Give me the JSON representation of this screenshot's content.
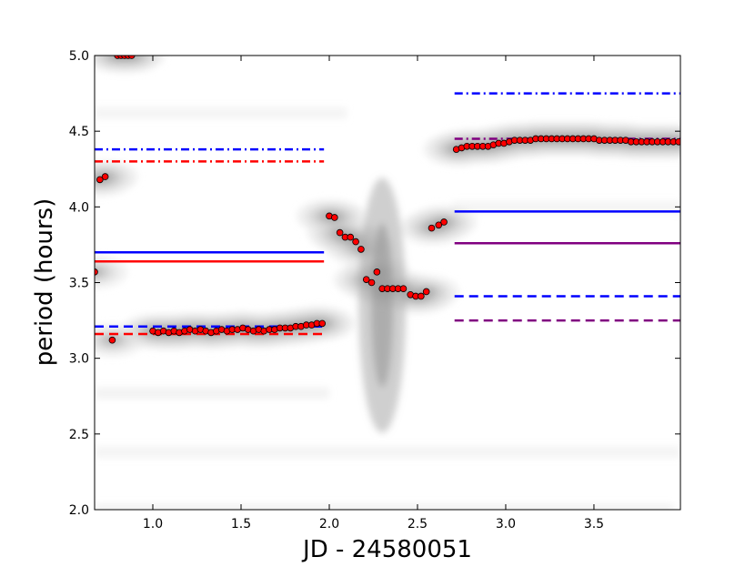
{
  "chart_data": {
    "type": "scatter",
    "title": "",
    "xlabel": "JD - 24580051",
    "ylabel": "period (hours)",
    "xlim": [
      0.67,
      3.99
    ],
    "ylim": [
      2.0,
      5.0
    ],
    "x_ticks": [
      1.0,
      1.5,
      2.0,
      2.5,
      3.0,
      3.5
    ],
    "x_tick_labels": [
      "1.0",
      "1.5",
      "2.0",
      "2.5",
      "3.0",
      "3.5"
    ],
    "y_ticks": [
      2.0,
      2.5,
      3.0,
      3.5,
      4.0,
      4.5,
      5.0
    ],
    "y_tick_labels": [
      "2.0",
      "2.5",
      "3.0",
      "3.5",
      "4.0",
      "4.5",
      "5.0"
    ],
    "grid": false,
    "legend": "none",
    "background": "grayscale filled contours (periodogram power) concentrated around the measured period track",
    "points_color": "#ff0000",
    "points": [
      [
        0.67,
        3.57
      ],
      [
        0.7,
        4.18
      ],
      [
        0.73,
        4.2
      ],
      [
        0.77,
        3.12
      ],
      [
        0.8,
        5.0
      ],
      [
        0.82,
        5.0
      ],
      [
        0.84,
        5.0
      ],
      [
        0.86,
        5.0
      ],
      [
        0.88,
        5.0
      ],
      [
        1.0,
        3.18
      ],
      [
        1.03,
        3.17
      ],
      [
        1.06,
        3.18
      ],
      [
        1.09,
        3.17
      ],
      [
        1.12,
        3.18
      ],
      [
        1.15,
        3.17
      ],
      [
        1.18,
        3.18
      ],
      [
        1.21,
        3.19
      ],
      [
        1.24,
        3.18
      ],
      [
        1.27,
        3.19
      ],
      [
        1.3,
        3.18
      ],
      [
        1.33,
        3.17
      ],
      [
        1.36,
        3.18
      ],
      [
        1.39,
        3.19
      ],
      [
        1.42,
        3.18
      ],
      [
        1.45,
        3.19
      ],
      [
        1.48,
        3.19
      ],
      [
        1.51,
        3.2
      ],
      [
        1.54,
        3.19
      ],
      [
        1.57,
        3.18
      ],
      [
        1.6,
        3.19
      ],
      [
        1.63,
        3.18
      ],
      [
        1.66,
        3.19
      ],
      [
        1.69,
        3.19
      ],
      [
        1.72,
        3.2
      ],
      [
        1.75,
        3.2
      ],
      [
        1.78,
        3.2
      ],
      [
        1.81,
        3.21
      ],
      [
        1.84,
        3.21
      ],
      [
        1.87,
        3.22
      ],
      [
        1.9,
        3.22
      ],
      [
        1.93,
        3.23
      ],
      [
        1.96,
        3.23
      ],
      [
        2.0,
        3.94
      ],
      [
        2.03,
        3.93
      ],
      [
        2.06,
        3.83
      ],
      [
        2.09,
        3.8
      ],
      [
        2.12,
        3.8
      ],
      [
        2.15,
        3.77
      ],
      [
        2.18,
        3.72
      ],
      [
        2.21,
        3.52
      ],
      [
        2.24,
        3.5
      ],
      [
        2.27,
        3.57
      ],
      [
        2.3,
        3.46
      ],
      [
        2.33,
        3.46
      ],
      [
        2.36,
        3.46
      ],
      [
        2.39,
        3.46
      ],
      [
        2.42,
        3.46
      ],
      [
        2.46,
        3.42
      ],
      [
        2.49,
        3.41
      ],
      [
        2.52,
        3.41
      ],
      [
        2.55,
        3.44
      ],
      [
        2.58,
        3.86
      ],
      [
        2.62,
        3.88
      ],
      [
        2.65,
        3.9
      ],
      [
        2.72,
        4.38
      ],
      [
        2.75,
        4.39
      ],
      [
        2.78,
        4.4
      ],
      [
        2.81,
        4.4
      ],
      [
        2.84,
        4.4
      ],
      [
        2.87,
        4.4
      ],
      [
        2.9,
        4.4
      ],
      [
        2.93,
        4.41
      ],
      [
        2.96,
        4.42
      ],
      [
        2.99,
        4.42
      ],
      [
        3.02,
        4.43
      ],
      [
        3.05,
        4.44
      ],
      [
        3.08,
        4.44
      ],
      [
        3.11,
        4.44
      ],
      [
        3.14,
        4.44
      ],
      [
        3.17,
        4.45
      ],
      [
        3.2,
        4.45
      ],
      [
        3.23,
        4.45
      ],
      [
        3.26,
        4.45
      ],
      [
        3.29,
        4.45
      ],
      [
        3.32,
        4.45
      ],
      [
        3.35,
        4.45
      ],
      [
        3.38,
        4.45
      ],
      [
        3.41,
        4.45
      ],
      [
        3.44,
        4.45
      ],
      [
        3.47,
        4.45
      ],
      [
        3.5,
        4.45
      ],
      [
        3.53,
        4.44
      ],
      [
        3.56,
        4.44
      ],
      [
        3.59,
        4.44
      ],
      [
        3.62,
        4.44
      ],
      [
        3.65,
        4.44
      ],
      [
        3.68,
        4.44
      ],
      [
        3.71,
        4.43
      ],
      [
        3.74,
        4.43
      ],
      [
        3.77,
        4.43
      ],
      [
        3.8,
        4.43
      ],
      [
        3.83,
        4.43
      ],
      [
        3.86,
        4.43
      ],
      [
        3.89,
        4.43
      ],
      [
        3.92,
        4.43
      ],
      [
        3.95,
        4.43
      ],
      [
        3.98,
        4.43
      ]
    ],
    "lines": [
      {
        "color": "#0000ff",
        "style": "solid",
        "x": [
          0.67,
          1.97
        ],
        "y": 3.7
      },
      {
        "color": "#ff0000",
        "style": "solid",
        "x": [
          0.67,
          1.97
        ],
        "y": 3.64
      },
      {
        "color": "#0000ff",
        "style": "dashed",
        "x": [
          0.67,
          1.97
        ],
        "y": 3.21
      },
      {
        "color": "#ff0000",
        "style": "dashed",
        "x": [
          0.67,
          1.97
        ],
        "y": 3.16
      },
      {
        "color": "#0000ff",
        "style": "dashdot",
        "x": [
          0.67,
          1.97
        ],
        "y": 4.38
      },
      {
        "color": "#ff0000",
        "style": "dashdot",
        "x": [
          0.67,
          1.97
        ],
        "y": 4.3
      },
      {
        "color": "#0000ff",
        "style": "solid",
        "x": [
          2.71,
          3.99
        ],
        "y": 3.97
      },
      {
        "color": "#800080",
        "style": "solid",
        "x": [
          2.71,
          3.99
        ],
        "y": 3.76
      },
      {
        "color": "#0000ff",
        "style": "dashed",
        "x": [
          2.71,
          3.99
        ],
        "y": 3.41
      },
      {
        "color": "#800080",
        "style": "dashed",
        "x": [
          2.71,
          3.99
        ],
        "y": 3.25
      },
      {
        "color": "#0000ff",
        "style": "dashdot",
        "x": [
          2.71,
          3.99
        ],
        "y": 4.75
      },
      {
        "color": "#800080",
        "style": "dashdot",
        "x": [
          2.71,
          3.99
        ],
        "y": 4.45
      }
    ]
  }
}
